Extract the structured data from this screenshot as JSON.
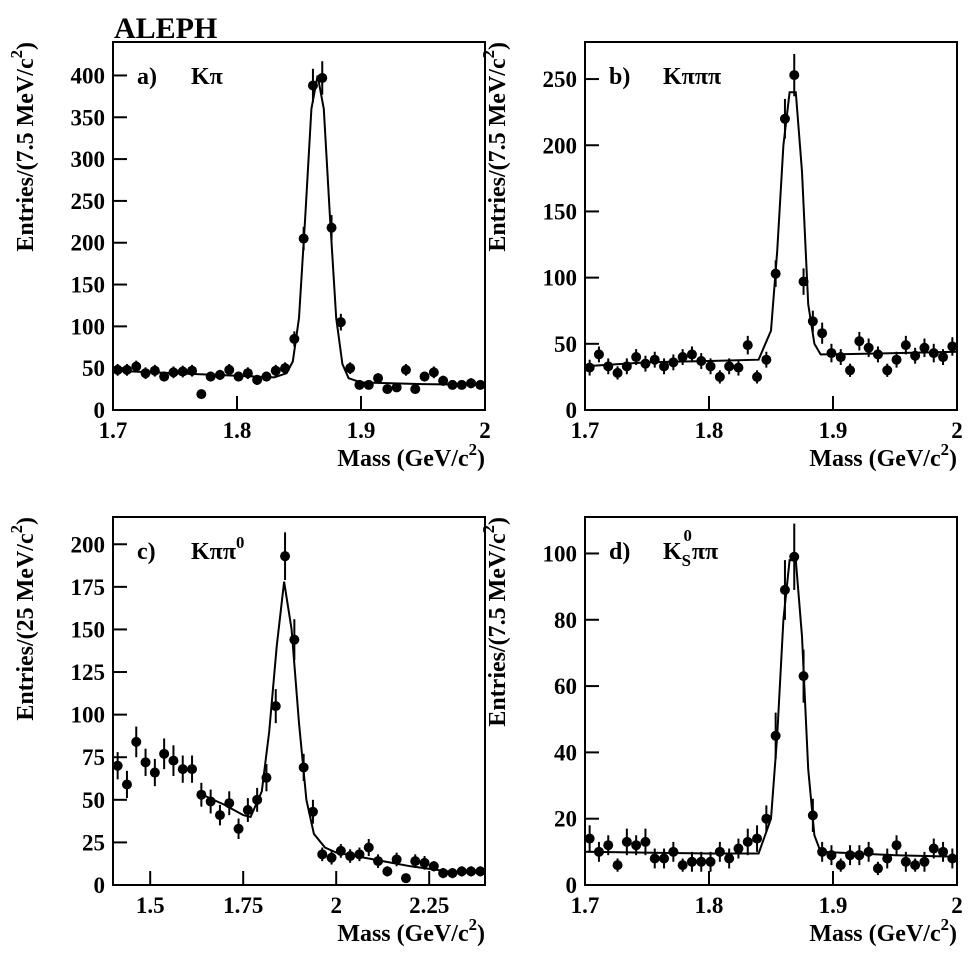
{
  "title": "ALEPH",
  "chart_data": [
    {
      "type": "errorbar",
      "panel": "a)",
      "channel": [
        {
          "text": "Kπ"
        }
      ],
      "ylabel": [
        {
          "text": "Entries/(7.5 MeV/c"
        },
        {
          "text": "2",
          "shift": "sup"
        },
        {
          "text": ")"
        }
      ],
      "xlabel": [
        {
          "text": "Mass (GeV/c"
        },
        {
          "text": "2",
          "shift": "sup"
        },
        {
          "text": ")"
        }
      ],
      "xlim": [
        1.7,
        2.0
      ],
      "xticks": [
        1.7,
        1.8,
        1.9,
        2
      ],
      "ylim": [
        0,
        440
      ],
      "yticks": [
        0,
        50,
        100,
        150,
        200,
        250,
        300,
        350,
        400
      ],
      "data": {
        "x": [
          1.70375,
          1.71125,
          1.71875,
          1.72625,
          1.73375,
          1.74125,
          1.74875,
          1.75625,
          1.76375,
          1.77125,
          1.77875,
          1.78625,
          1.79375,
          1.80125,
          1.80875,
          1.81625,
          1.82375,
          1.83125,
          1.83875,
          1.84625,
          1.85375,
          1.86125,
          1.86875,
          1.87625,
          1.88375,
          1.89125,
          1.89875,
          1.90625,
          1.91375,
          1.92125,
          1.92875,
          1.93625,
          1.94375,
          1.95125,
          1.95875,
          1.96625,
          1.97375,
          1.98125,
          1.98875,
          1.99625
        ],
        "values": [
          48,
          48,
          52,
          44,
          47,
          40,
          45,
          46,
          47,
          19,
          40,
          42,
          48,
          40,
          44,
          36,
          40,
          47,
          50,
          85,
          205,
          388,
          397,
          218,
          105,
          50,
          30,
          30,
          38,
          25,
          27,
          48,
          25,
          40,
          45,
          35,
          30,
          30,
          32,
          30
        ],
        "errors": [
          7,
          7,
          7,
          7,
          7,
          6,
          7,
          7,
          7,
          4,
          6,
          6,
          7,
          6,
          7,
          6,
          6,
          7,
          7,
          9,
          14,
          20,
          20,
          15,
          10,
          7,
          5,
          5,
          6,
          5,
          5,
          7,
          5,
          6,
          7,
          6,
          5,
          5,
          6,
          5
        ]
      },
      "fit": {
        "x": [
          1.7,
          1.75,
          1.8,
          1.83,
          1.84,
          1.845,
          1.85,
          1.855,
          1.86,
          1.865,
          1.87,
          1.875,
          1.88,
          1.885,
          1.89,
          1.9,
          1.95,
          2.0
        ],
        "values": [
          47,
          44,
          41,
          39,
          44,
          58,
          110,
          230,
          360,
          400,
          360,
          230,
          110,
          55,
          38,
          33,
          31,
          30
        ]
      }
    },
    {
      "type": "errorbar",
      "panel": "b)",
      "channel": [
        {
          "text": "Kπππ"
        }
      ],
      "ylabel": [
        {
          "text": "Entries/(7.5 MeV/c"
        },
        {
          "text": "2",
          "shift": "sup"
        },
        {
          "text": ")"
        }
      ],
      "xlabel": [
        {
          "text": "Mass (GeV/c"
        },
        {
          "text": "2",
          "shift": "sup"
        },
        {
          "text": ")"
        }
      ],
      "xlim": [
        1.7,
        2.0
      ],
      "xticks": [
        1.7,
        1.8,
        1.9,
        2
      ],
      "ylim": [
        0,
        278
      ],
      "yticks": [
        0,
        50,
        100,
        150,
        200,
        250
      ],
      "data": {
        "x": [
          1.70375,
          1.71125,
          1.71875,
          1.72625,
          1.73375,
          1.74125,
          1.74875,
          1.75625,
          1.76375,
          1.77125,
          1.77875,
          1.78625,
          1.79375,
          1.80125,
          1.80875,
          1.81625,
          1.82375,
          1.83125,
          1.83875,
          1.84625,
          1.85375,
          1.86125,
          1.86875,
          1.87625,
          1.88375,
          1.89125,
          1.89875,
          1.90625,
          1.91375,
          1.92125,
          1.92875,
          1.93625,
          1.94375,
          1.95125,
          1.95875,
          1.96625,
          1.97375,
          1.98125,
          1.98875,
          1.99625
        ],
        "values": [
          32,
          42,
          33,
          28,
          33,
          40,
          35,
          38,
          33,
          36,
          40,
          42,
          37,
          33,
          25,
          33,
          32,
          49,
          25,
          38,
          103,
          220,
          253,
          97,
          67,
          58,
          43,
          40,
          30,
          52,
          47,
          42,
          30,
          38,
          49,
          41,
          47,
          43,
          40,
          48
        ],
        "errors": [
          6,
          6,
          6,
          5,
          6,
          6,
          6,
          6,
          6,
          6,
          6,
          6,
          6,
          6,
          5,
          6,
          6,
          7,
          5,
          6,
          10,
          15,
          16,
          10,
          8,
          8,
          7,
          6,
          5,
          7,
          7,
          6,
          5,
          6,
          7,
          6,
          7,
          7,
          6,
          7
        ]
      },
      "fit": {
        "x": [
          1.7,
          1.75,
          1.8,
          1.84,
          1.85,
          1.855,
          1.86,
          1.865,
          1.87,
          1.875,
          1.88,
          1.885,
          1.89,
          1.9,
          1.95,
          2.0
        ],
        "values": [
          33,
          36,
          37,
          38,
          60,
          120,
          200,
          240,
          240,
          180,
          80,
          50,
          42,
          42,
          43,
          44
        ]
      }
    },
    {
      "type": "errorbar",
      "panel": "c)",
      "channel": [
        {
          "text": "Kππ"
        },
        {
          "text": "0",
          "shift": "sup"
        }
      ],
      "ylabel": [
        {
          "text": "Entries/(25 MeV/c"
        },
        {
          "text": "2",
          "shift": "sup"
        },
        {
          "text": ")"
        }
      ],
      "xlabel": [
        {
          "text": "Mass (GeV/c"
        },
        {
          "text": "2",
          "shift": "sup"
        },
        {
          "text": ")"
        }
      ],
      "xlim": [
        1.4,
        2.4
      ],
      "xticks": [
        1.5,
        1.75,
        2,
        2.25
      ],
      "ylim": [
        0,
        216
      ],
      "yticks": [
        0,
        25,
        50,
        75,
        100,
        125,
        150,
        175,
        200
      ],
      "data": {
        "x": [
          1.4125,
          1.4375,
          1.4625,
          1.4875,
          1.5125,
          1.5375,
          1.5625,
          1.5875,
          1.6125,
          1.6375,
          1.6625,
          1.6875,
          1.7125,
          1.7375,
          1.7625,
          1.7875,
          1.8125,
          1.8375,
          1.8625,
          1.8875,
          1.9125,
          1.9375,
          1.9625,
          1.9875,
          2.0125,
          2.0375,
          2.0625,
          2.0875,
          2.1125,
          2.1375,
          2.1625,
          2.1875,
          2.2125,
          2.2375,
          2.2625,
          2.2875,
          2.3125,
          2.3375,
          2.3625,
          2.3875
        ],
        "values": [
          70,
          59,
          84,
          72,
          66,
          77,
          73,
          68,
          68,
          53,
          49,
          41,
          48,
          33,
          44,
          50,
          63,
          105,
          193,
          144,
          69,
          43,
          18,
          16,
          20,
          17,
          18,
          22,
          14,
          8,
          15,
          4,
          14,
          13,
          11,
          7,
          7,
          8,
          8,
          8
        ],
        "errors": [
          8,
          8,
          9,
          8,
          8,
          9,
          9,
          8,
          8,
          7,
          7,
          6,
          7,
          6,
          7,
          7,
          8,
          10,
          14,
          12,
          8,
          7,
          4,
          4,
          4,
          4,
          4,
          5,
          4,
          3,
          4,
          2,
          4,
          4,
          3,
          3,
          3,
          3,
          3,
          3
        ]
      },
      "fit": {
        "x": [
          1.63,
          1.7,
          1.75,
          1.77,
          1.8,
          1.82,
          1.84,
          1.86,
          1.88,
          1.9,
          1.92,
          1.94,
          1.97,
          2.0,
          2.1,
          2.2,
          2.3,
          2.4
        ],
        "values": [
          54,
          47,
          41,
          40,
          55,
          90,
          140,
          178,
          150,
          95,
          50,
          30,
          22,
          19,
          15,
          11,
          8,
          7
        ]
      }
    },
    {
      "type": "errorbar",
      "panel": "d)",
      "channel": [
        {
          "text": "K"
        },
        {
          "text": "S",
          "shift": "sub"
        },
        {
          "text": "0",
          "shift": "supback"
        },
        {
          "text": "ππ"
        }
      ],
      "ylabel": [
        {
          "text": "Entries/(7.5 MeV/c"
        },
        {
          "text": "2",
          "shift": "sup"
        },
        {
          "text": ")"
        }
      ],
      "xlabel": [
        {
          "text": "Mass (GeV/c"
        },
        {
          "text": "2",
          "shift": "sup"
        },
        {
          "text": ")"
        }
      ],
      "xlim": [
        1.7,
        2.0
      ],
      "xticks": [
        1.7,
        1.8,
        1.9,
        2
      ],
      "ylim": [
        0,
        111
      ],
      "yticks": [
        0,
        20,
        40,
        60,
        80,
        100
      ],
      "data": {
        "x": [
          1.70375,
          1.71125,
          1.71875,
          1.72625,
          1.73375,
          1.74125,
          1.74875,
          1.75625,
          1.76375,
          1.77125,
          1.77875,
          1.78625,
          1.79375,
          1.80125,
          1.80875,
          1.81625,
          1.82375,
          1.83125,
          1.83875,
          1.84625,
          1.85375,
          1.86125,
          1.86875,
          1.87625,
          1.88375,
          1.89125,
          1.89875,
          1.90625,
          1.91375,
          1.92125,
          1.92875,
          1.93625,
          1.94375,
          1.95125,
          1.95875,
          1.96625,
          1.97375,
          1.98125,
          1.98875,
          1.99625
        ],
        "values": [
          14,
          10,
          12,
          6,
          13,
          12,
          13,
          8,
          8,
          10,
          6,
          7,
          7,
          7,
          10,
          8,
          11,
          13,
          14,
          20,
          45,
          89,
          99,
          63,
          21,
          10,
          9,
          6,
          9,
          9,
          10,
          5,
          8,
          12,
          7,
          6,
          7,
          11,
          10,
          8
        ],
        "errors": [
          4,
          3,
          3,
          2,
          4,
          3,
          4,
          3,
          3,
          3,
          2,
          3,
          3,
          3,
          3,
          3,
          3,
          4,
          4,
          4,
          7,
          9,
          10,
          8,
          5,
          3,
          3,
          2,
          3,
          3,
          3,
          2,
          3,
          3,
          3,
          2,
          3,
          3,
          3,
          3
        ]
      },
      "fit": {
        "x": [
          1.7,
          1.8,
          1.84,
          1.85,
          1.855,
          1.86,
          1.865,
          1.87,
          1.875,
          1.88,
          1.885,
          1.89,
          1.95,
          2.0
        ],
        "values": [
          10,
          9.5,
          9.5,
          20,
          45,
          80,
          98,
          98,
          75,
          35,
          15,
          10,
          9,
          8.5
        ]
      }
    }
  ]
}
